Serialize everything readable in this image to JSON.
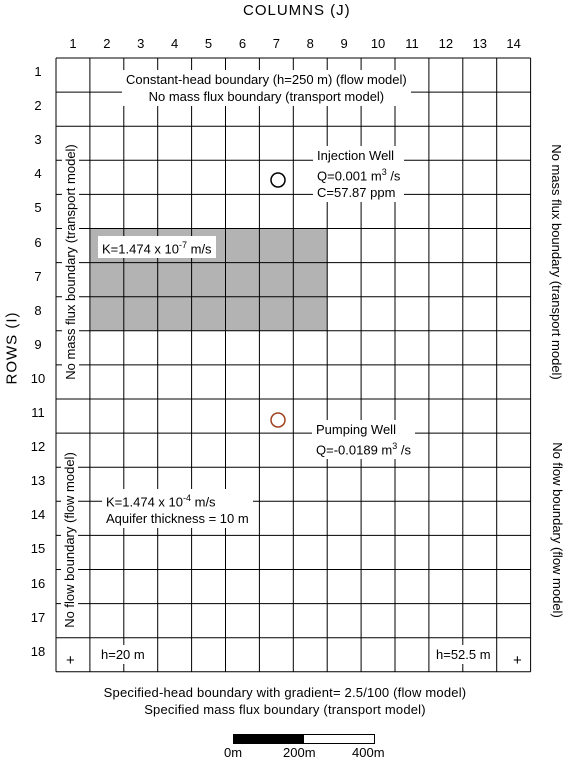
{
  "axes": {
    "columns_title": "COLUMNS (J)",
    "rows_title": "ROWS (I)",
    "columns": [
      "1",
      "2",
      "3",
      "4",
      "5",
      "6",
      "7",
      "8",
      "9",
      "10",
      "11",
      "12",
      "13",
      "14"
    ],
    "rows": [
      "1",
      "2",
      "3",
      "4",
      "5",
      "6",
      "7",
      "8",
      "9",
      "10",
      "11",
      "12",
      "13",
      "14",
      "15",
      "16",
      "17",
      "18"
    ]
  },
  "boundaries": {
    "top_line1": "Constant-head boundary (h=250 m) (flow model)",
    "top_line2": "No mass flux boundary (transport model)",
    "bottom_line1": "Specified-head boundary with gradient= 2.5/100 (flow model)",
    "bottom_line2": "Specified mass flux boundary (transport model)",
    "left_upper": "No mass flux boundary (transport model)",
    "left_lower": "No flow boundary (flow model)",
    "right_upper": "No mass flux boundary (transport model)",
    "right_lower": "No flow boundary (flow model)"
  },
  "low_k_zone": {
    "k_label": "K=1.474 x 10",
    "k_exp": "-7",
    "k_unit": " m/s",
    "fill": "#b3b3b3"
  },
  "aquifer": {
    "k_label": "K=1.474 x 10",
    "k_exp": "-4",
    "k_unit": " m/s",
    "thickness": "Aquifer thickness = 10 m"
  },
  "injection_well": {
    "title": "Injection Well",
    "q_label": "Q=0.001 m",
    "q_exp": "3",
    "q_unit": " /s",
    "c_label": "C=57.87 ppm",
    "marker_color": "#000000"
  },
  "pumping_well": {
    "title": "Pumping Well",
    "q_label": "Q=-0.0189 m",
    "q_exp": "3",
    "q_unit": " /s",
    "marker_color": "#a0421e"
  },
  "heads": {
    "left": "h=20 m",
    "right": "h=52.5 m",
    "plus": "+"
  },
  "scale_bar": {
    "labels": [
      "0m",
      "200m",
      "400m"
    ]
  }
}
